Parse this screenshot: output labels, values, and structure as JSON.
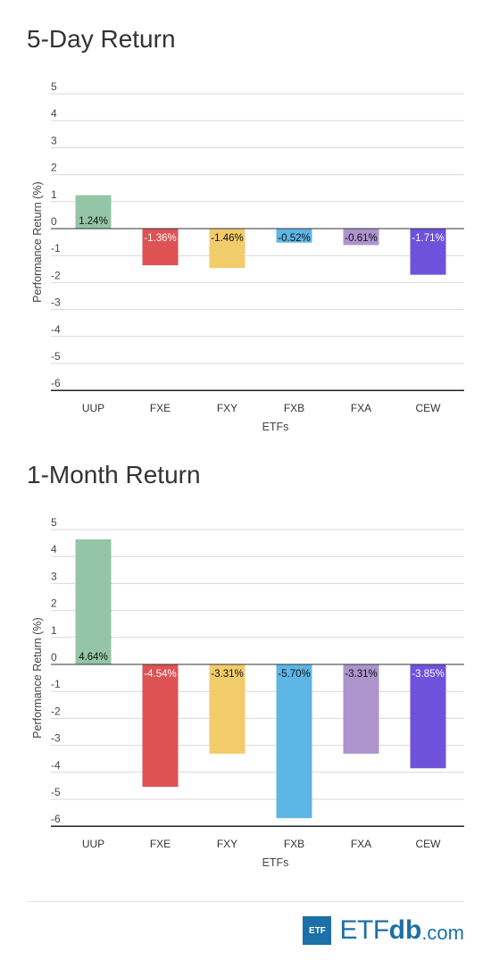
{
  "chart_data": [
    {
      "type": "bar",
      "title": "5-Day Return",
      "xlabel": "ETFs",
      "ylabel": "Performance Return (%)",
      "ylim": [
        -6,
        5
      ],
      "yticks": [
        5,
        4,
        3,
        2,
        1,
        0,
        -1,
        -2,
        -3,
        -4,
        -5,
        -6
      ],
      "grid": true,
      "categories": [
        "UUP",
        "FXE",
        "FXY",
        "FXB",
        "FXA",
        "CEW"
      ],
      "values": [
        1.24,
        -1.36,
        -1.46,
        -0.52,
        -0.61,
        -1.71
      ],
      "data_labels": [
        "1.24%",
        "-1.36%",
        "-1.46%",
        "-0.52%",
        "-0.61%",
        "-1.71%"
      ],
      "colors": [
        "#93c5a6",
        "#de5254",
        "#f2cc6b",
        "#5db6e6",
        "#ad94cc",
        "#6e52db"
      ]
    },
    {
      "type": "bar",
      "title": "1-Month Return",
      "xlabel": "ETFs",
      "ylabel": "Performance Return (%)",
      "ylim": [
        -6,
        5
      ],
      "yticks": [
        5,
        4,
        3,
        2,
        1,
        0,
        -1,
        -2,
        -3,
        -4,
        -5,
        -6
      ],
      "grid": true,
      "categories": [
        "UUP",
        "FXE",
        "FXY",
        "FXB",
        "FXA",
        "CEW"
      ],
      "values": [
        4.64,
        -4.54,
        -3.31,
        -5.7,
        -3.31,
        -3.85
      ],
      "data_labels": [
        "4.64%",
        "-4.54%",
        "-3.31%",
        "-5.70%",
        "-3.31%",
        "-3.85%"
      ],
      "colors": [
        "#93c5a6",
        "#de5254",
        "#f2cc6b",
        "#5db6e6",
        "#ad94cc",
        "#6e52db"
      ]
    }
  ],
  "footer": {
    "logo_box": "ETF",
    "logo_etf": "ETF",
    "logo_db": "db",
    "logo_com": ".com",
    "brand_color": "#1d6fa8"
  }
}
